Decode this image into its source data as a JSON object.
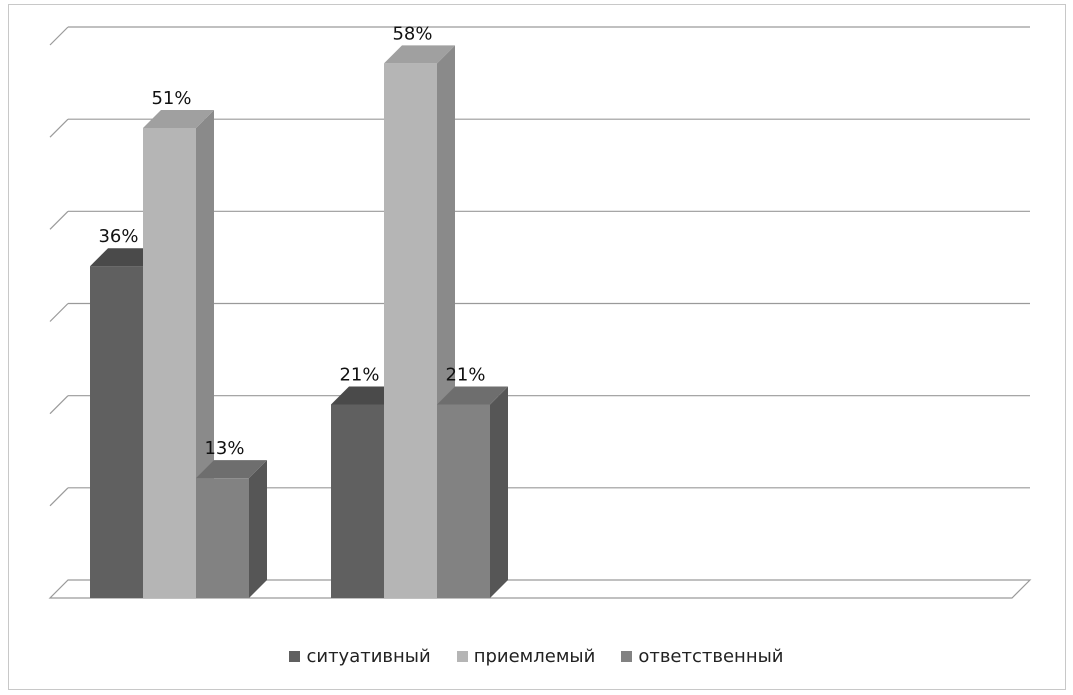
{
  "chart_data": {
    "type": "bar",
    "categories": [
      "",
      ""
    ],
    "series": [
      {
        "name": "ситуативный",
        "values": [
          36,
          21
        ],
        "color": "#606060",
        "side": "#3f3f3f",
        "top": "#4a4a4a",
        "labels": [
          "36%",
          "21%"
        ]
      },
      {
        "name": "приемлемый",
        "values": [
          51,
          58
        ],
        "color": "#b5b5b5",
        "side": "#8a8a8a",
        "top": "#a0a0a0",
        "labels": [
          "51%",
          "58%"
        ]
      },
      {
        "name": "ответственный",
        "values": [
          13,
          21
        ],
        "color": "#828282",
        "side": "#565656",
        "top": "#6e6e6e",
        "labels": [
          "13%",
          "21%"
        ]
      }
    ],
    "ylim": [
      0,
      60
    ],
    "grid": true,
    "legend_position": "bottom",
    "title": "",
    "xlabel": "",
    "ylabel": ""
  }
}
